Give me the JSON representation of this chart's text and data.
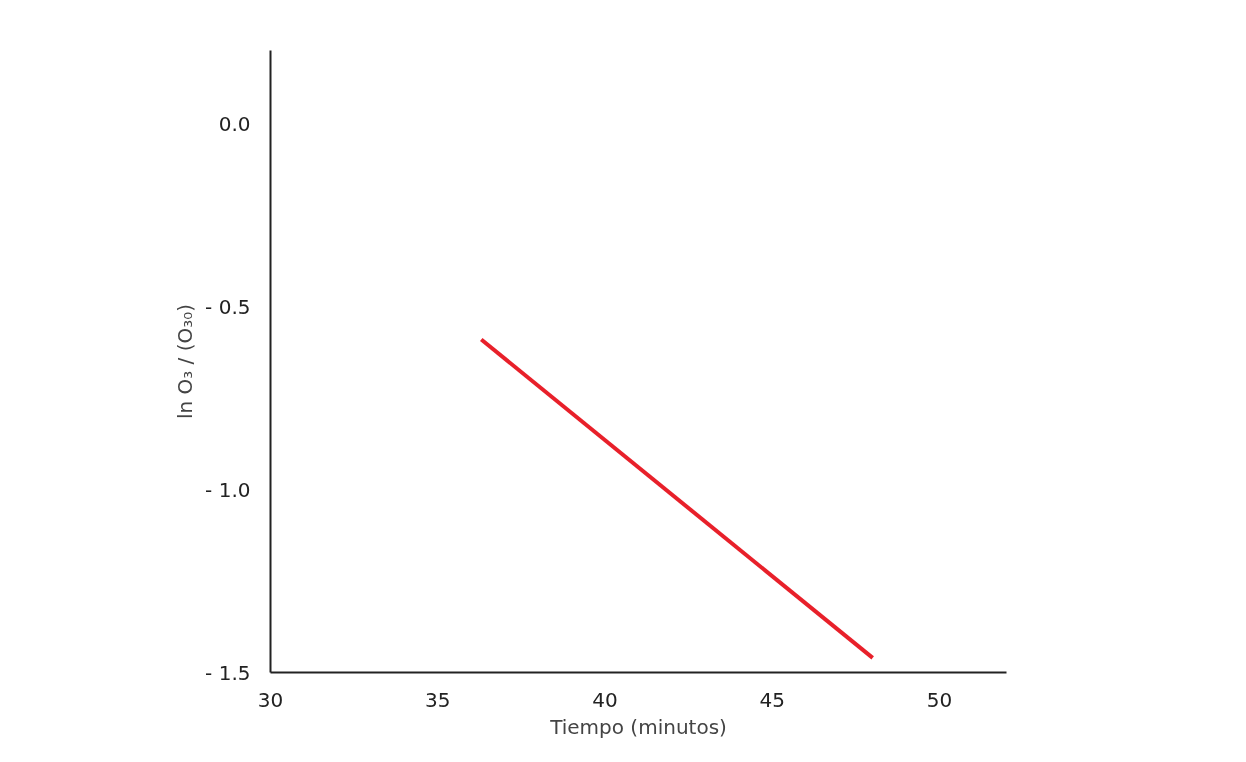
{
  "chart_data": {
    "type": "line",
    "xlabel": "Tiempo (minutos)",
    "ylabel": "ln O₃ / (O₃₀)",
    "x": [
      36.3,
      48.0
    ],
    "series": [
      {
        "color": "#e8202a",
        "values": [
          -0.59,
          -1.46
        ]
      }
    ],
    "xlim": [
      30,
      52
    ],
    "ylim": [
      -1.5,
      0.2
    ],
    "xticks": [
      30,
      35,
      40,
      45,
      50
    ],
    "yticks": [
      {
        "value": 0.0,
        "label": "0.0"
      },
      {
        "value": -0.5,
        "label": "- 0.5"
      },
      {
        "value": -1.0,
        "label": "- 1.0"
      },
      {
        "value": -1.5,
        "label": "- 1.5"
      }
    ],
    "grid": false,
    "marker": "none",
    "line_style": "solid"
  }
}
